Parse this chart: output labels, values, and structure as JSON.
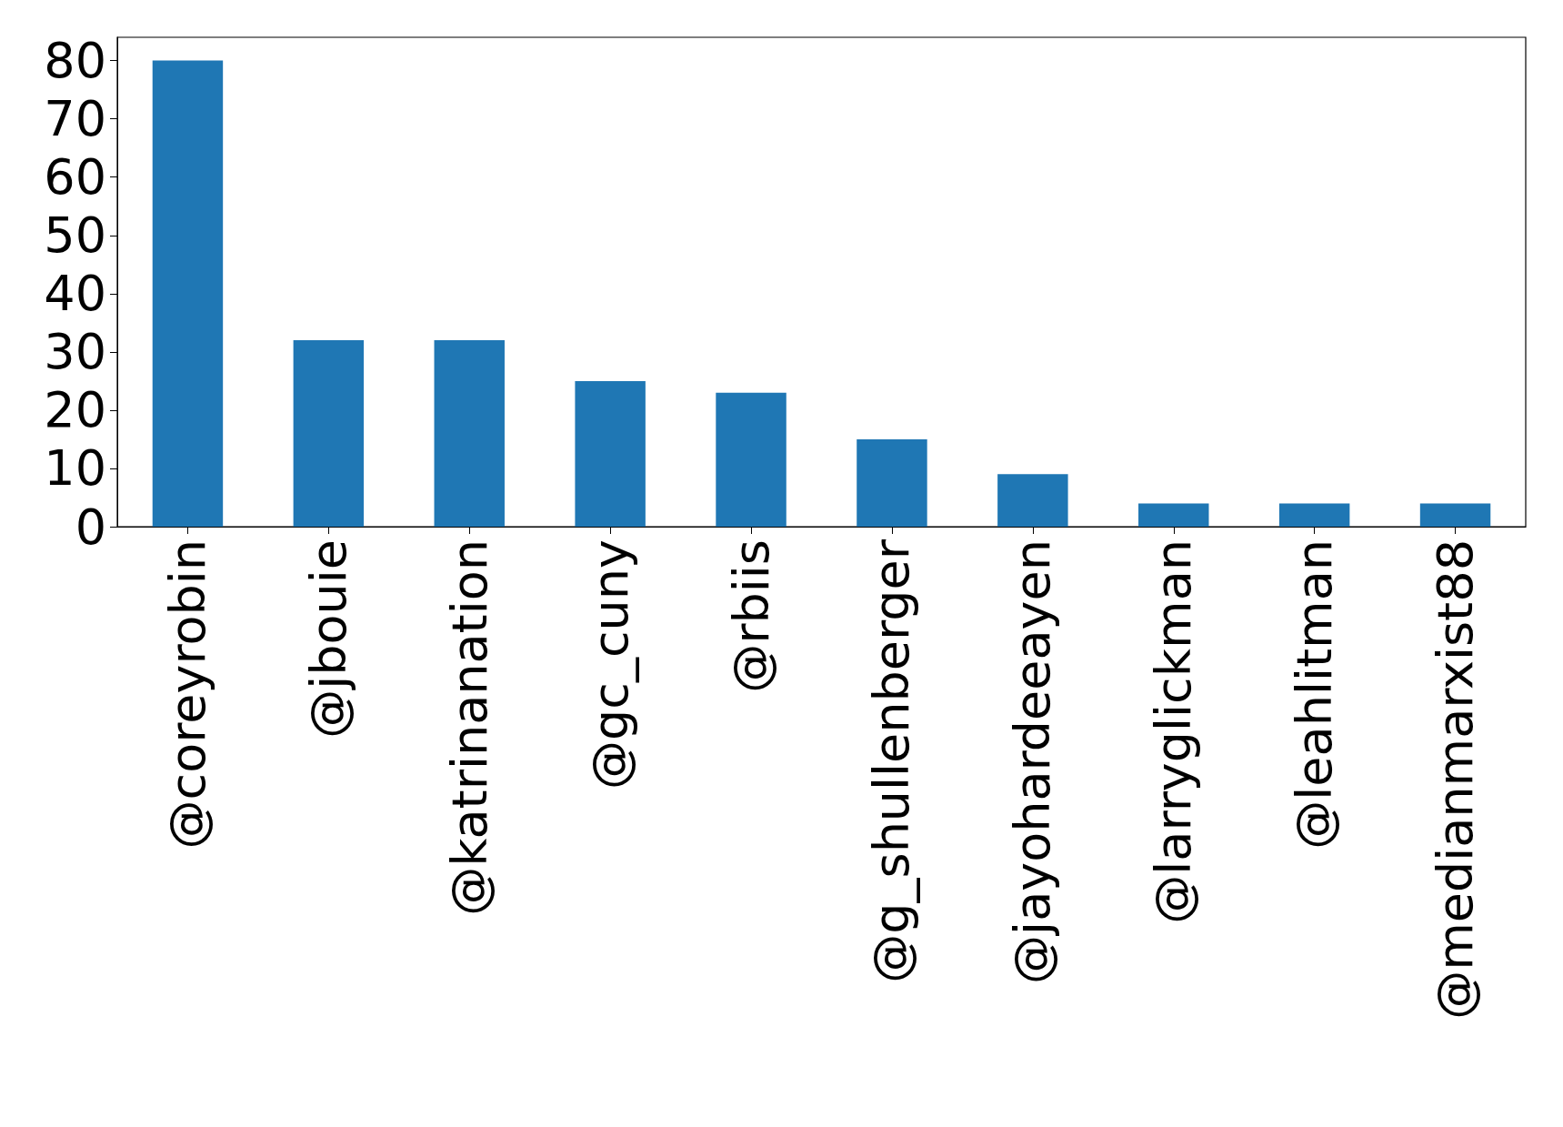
{
  "chart_data": {
    "type": "bar",
    "categories": [
      "@coreyrobin",
      "@jbouie",
      "@katrinanation",
      "@gc_cuny",
      "@rbiis",
      "@g_shullenberger",
      "@jayohardeeayen",
      "@larryglickman",
      "@leahlitman",
      "@medianmarxist88"
    ],
    "values": [
      80,
      32,
      32,
      25,
      23,
      15,
      9,
      4,
      4,
      4
    ],
    "color": "#1f77b4",
    "ylim": [
      0,
      84
    ],
    "yticks": [
      0,
      10,
      20,
      30,
      40,
      50,
      60,
      70,
      80
    ],
    "grid": false
  }
}
